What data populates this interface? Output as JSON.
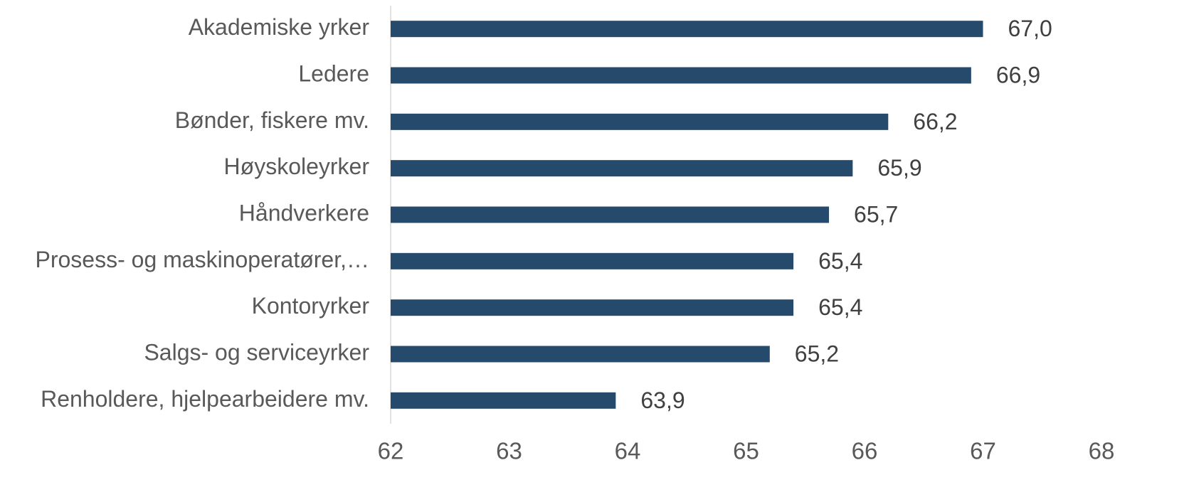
{
  "chart_data": {
    "type": "bar",
    "orientation": "horizontal",
    "categories": [
      "Akademiske yrker",
      "Ledere",
      "Bønder, fiskere mv.",
      "Høyskoleyrker",
      "Håndverkere",
      "Prosess- og maskinoperatører,…",
      "Kontoryrker",
      "Salgs- og serviceyrker",
      "Renholdere, hjelpearbeidere mv."
    ],
    "values": [
      67.0,
      66.9,
      66.2,
      65.9,
      65.7,
      65.4,
      65.4,
      65.2,
      63.9
    ],
    "value_labels": [
      "67,0",
      "66,9",
      "66,2",
      "65,9",
      "65,7",
      "65,4",
      "65,4",
      "65,2",
      "63,9"
    ],
    "color": "#264a6c",
    "xlim": [
      62,
      68
    ],
    "xticks": [
      62,
      63,
      64,
      65,
      66,
      67,
      68
    ],
    "grid": false
  }
}
